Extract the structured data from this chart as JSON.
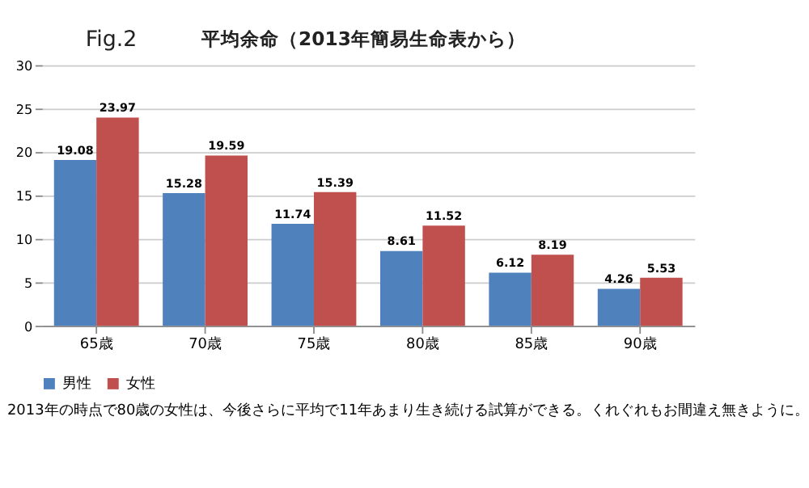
{
  "chart_data": {
    "type": "bar",
    "title": "Fig.2",
    "subtitle": "平均余命（2013年簡易生命表から）",
    "categories": [
      "65歳",
      "70歳",
      "75歳",
      "80歳",
      "85歳",
      "90歳"
    ],
    "series": [
      {
        "name": "男性",
        "color": "#4f81bd",
        "values": [
          19.08,
          15.28,
          11.74,
          8.61,
          6.12,
          4.26
        ]
      },
      {
        "name": "女性",
        "color": "#c0504d",
        "values": [
          23.97,
          19.59,
          15.39,
          11.52,
          8.19,
          5.53
        ]
      }
    ],
    "ylim": [
      0,
      30
    ],
    "yticks": [
      0,
      5,
      10,
      15,
      20,
      25,
      30
    ],
    "grid": "y",
    "legend": "bottom",
    "data_labels": true,
    "annotations": [
      "2013年の時点で80歳の女性は、今後さらに平均で11年あまり生き続ける試算ができる。くれぐれもお間違え無きように。"
    ]
  }
}
